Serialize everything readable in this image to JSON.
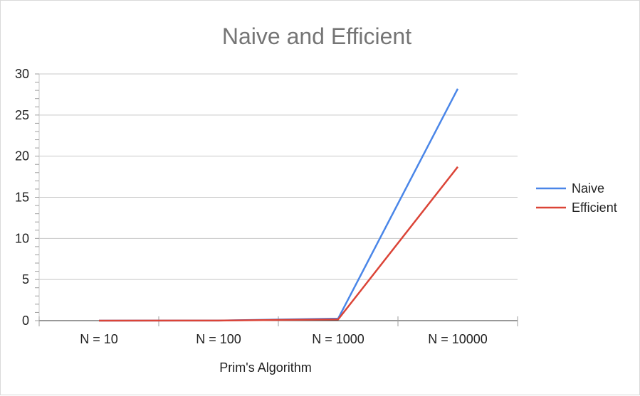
{
  "chart_data": {
    "type": "line",
    "title": "Naive and Efficient",
    "xlabel": "Prim's Algorithm",
    "ylabel": "",
    "categories": [
      "N = 10",
      "N = 100",
      "N = 1000",
      "N = 10000"
    ],
    "ylim": [
      0,
      30
    ],
    "yticks": [
      0,
      5,
      10,
      15,
      20,
      25,
      30
    ],
    "grid": true,
    "legend_position": "right",
    "series": [
      {
        "name": "Naive",
        "color": "#4a86e8",
        "values": [
          0,
          0.01,
          0.25,
          28.2
        ]
      },
      {
        "name": "Efficient",
        "color": "#db4437",
        "values": [
          0,
          0.01,
          0.15,
          18.7
        ]
      }
    ]
  }
}
